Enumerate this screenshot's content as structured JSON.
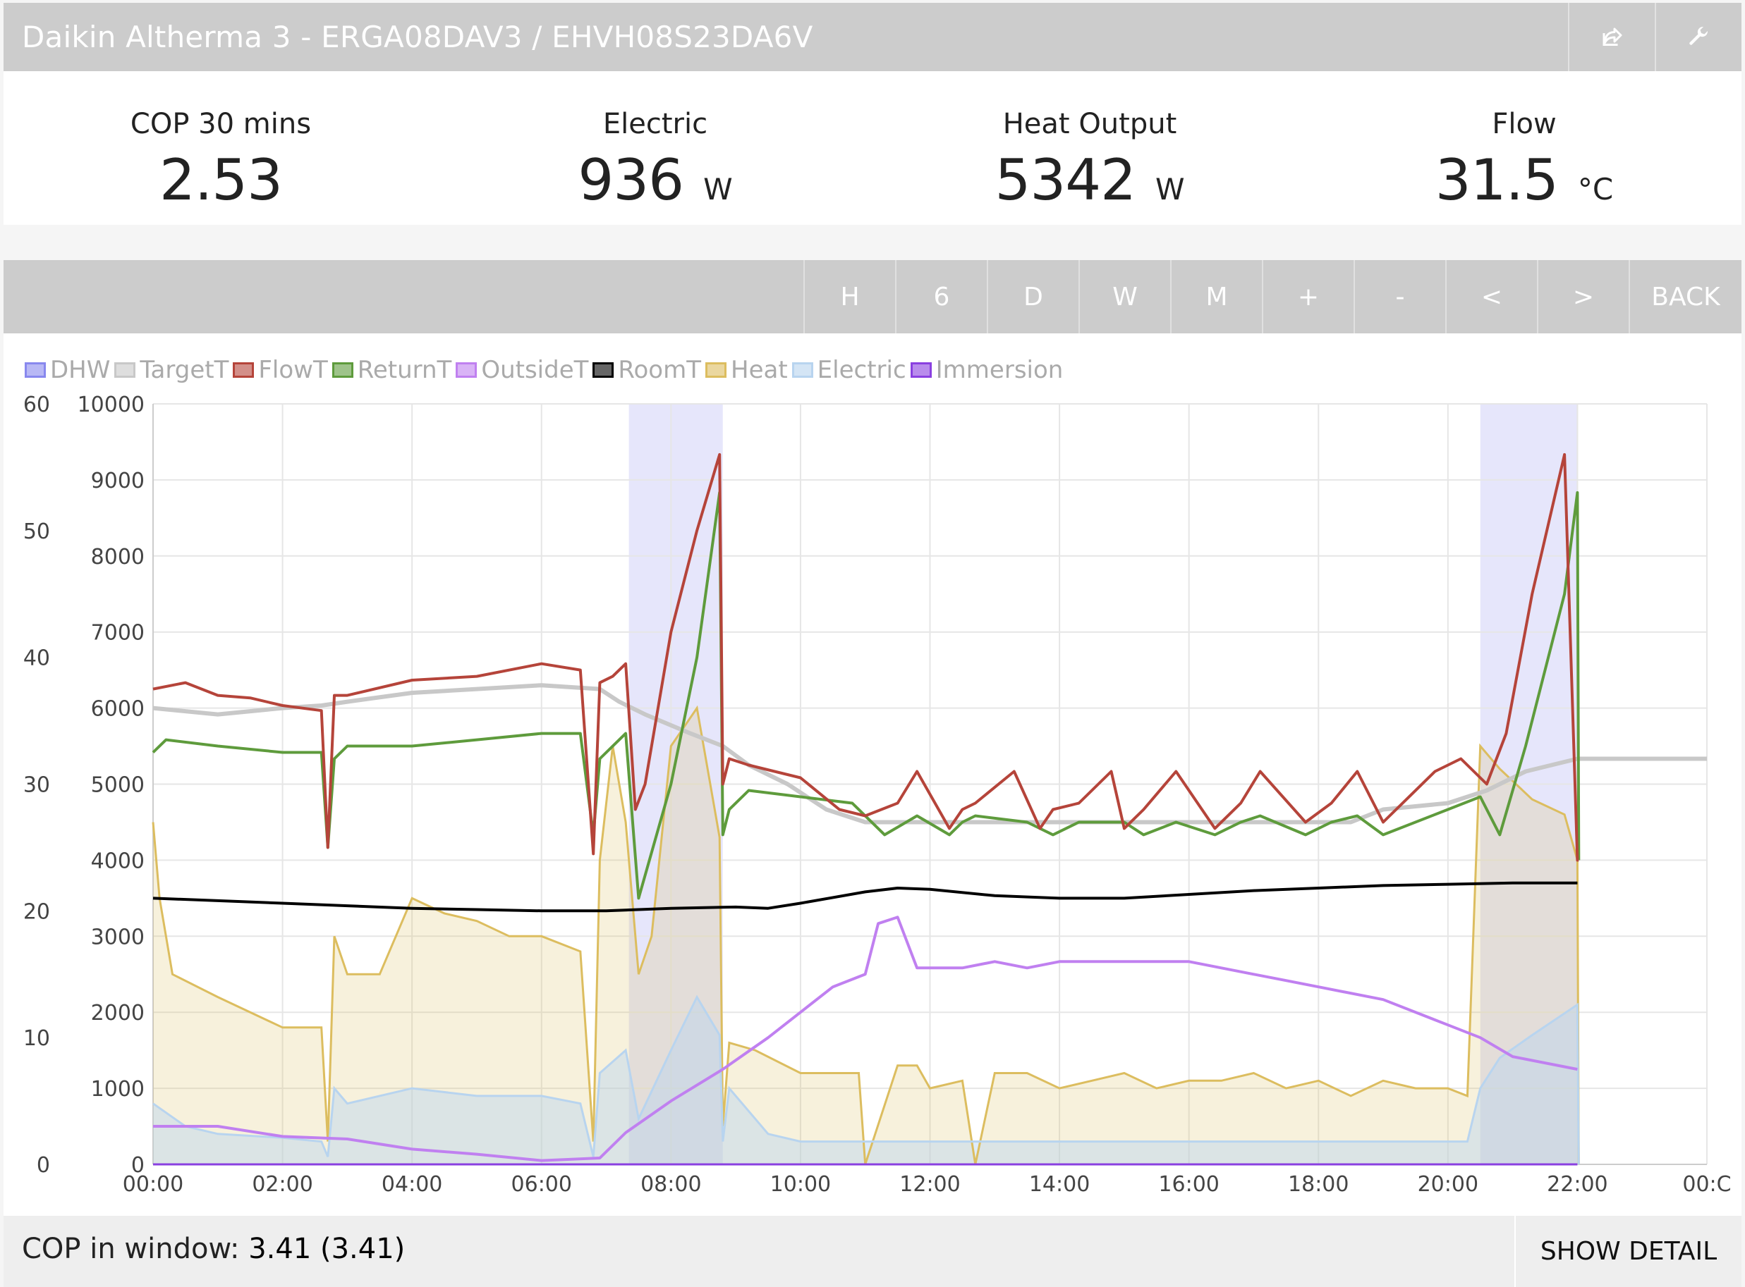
{
  "header": {
    "title": "Daikin Altherma 3 - ERGA08DAV3 / EHVH08S23DA6V",
    "share_icon": "share-icon",
    "settings_icon": "wrench-icon"
  },
  "stats": [
    {
      "label": "COP 30 mins",
      "value": "2.53",
      "unit": ""
    },
    {
      "label": "Electric",
      "value": "936",
      "unit": "W"
    },
    {
      "label": "Heat Output",
      "value": "5342",
      "unit": "W"
    },
    {
      "label": "Flow",
      "value": "31.5",
      "unit": "°C"
    }
  ],
  "toolbar": {
    "buttons": [
      "H",
      "6",
      "D",
      "W",
      "M",
      "+",
      "-",
      "<",
      ">",
      "BACK"
    ]
  },
  "footer": {
    "cop_label": "COP in window:",
    "cop_value": "3.41 (3.41)",
    "show_detail": "SHOW DETAIL"
  },
  "chart_data": {
    "type": "line",
    "legend": [
      {
        "name": "DHW",
        "color": "#8888ee"
      },
      {
        "name": "TargetT",
        "color": "#c8c8c8"
      },
      {
        "name": "FlowT",
        "color": "#b5443a"
      },
      {
        "name": "ReturnT",
        "color": "#5e9b3c"
      },
      {
        "name": "OutsideT",
        "color": "#c080f0"
      },
      {
        "name": "RoomT",
        "color": "#000000"
      },
      {
        "name": "Heat",
        "color": "#dcbd5f"
      },
      {
        "name": "Electric",
        "color": "#b8d4ef"
      },
      {
        "name": "Immersion",
        "color": "#8a40e0"
      }
    ],
    "x_ticks": [
      "00:00",
      "02:00",
      "04:00",
      "06:00",
      "08:00",
      "10:00",
      "12:00",
      "14:00",
      "16:00",
      "18:00",
      "20:00",
      "22:00",
      "00:C"
    ],
    "xlim_hours": [
      0,
      24
    ],
    "y_left_ticks": [
      0,
      10,
      20,
      30,
      40,
      50,
      60
    ],
    "y_left_range": [
      0,
      60
    ],
    "y_right_ticks": [
      0,
      1000,
      2000,
      3000,
      4000,
      5000,
      6000,
      7000,
      8000,
      9000,
      10000
    ],
    "y_right_range": [
      0,
      10000
    ],
    "dhw_periods_hours": [
      [
        7.35,
        8.8
      ],
      [
        20.5,
        22.0
      ]
    ],
    "series": [
      {
        "name": "TargetT",
        "x": [
          0,
          1,
          2,
          2.6,
          3,
          4,
          5,
          6,
          6.9,
          7.2,
          7.6,
          8.3,
          8.8,
          9.2,
          9.8,
          10.4,
          11,
          12,
          13,
          14,
          15,
          16,
          17,
          18,
          18.5,
          19,
          20,
          20.6,
          21.2,
          22,
          24
        ],
        "y": [
          36,
          35.5,
          36,
          36.2,
          36.5,
          37.2,
          37.5,
          37.8,
          37.5,
          36.5,
          35.5,
          34,
          33,
          31.5,
          30,
          28,
          27,
          27,
          27,
          27,
          27,
          27,
          27,
          27,
          27,
          28,
          28.5,
          29.5,
          31,
          32,
          32
        ]
      },
      {
        "name": "FlowT",
        "x": [
          0,
          0.5,
          1,
          1.5,
          2,
          2.6,
          2.7,
          2.8,
          3,
          4,
          5,
          6,
          6.6,
          6.8,
          6.9,
          7.1,
          7.3,
          7.45,
          7.6,
          8,
          8.4,
          8.75,
          8.8,
          8.9,
          9.2,
          10,
          10.6,
          11,
          11.5,
          11.8,
          12.3,
          12.5,
          12.7,
          13.3,
          13.7,
          13.9,
          14.3,
          14.8,
          15,
          15.3,
          15.8,
          16.4,
          16.8,
          17.1,
          17.8,
          18.2,
          18.6,
          19,
          19.8,
          20.2,
          20.6,
          20.9,
          21.3,
          21.8,
          22.0,
          22.02
        ],
        "y": [
          37.5,
          38,
          37,
          36.8,
          36.2,
          35.8,
          25,
          37,
          37,
          38.2,
          38.5,
          39.5,
          39,
          24.5,
          38,
          38.5,
          39.5,
          28,
          30,
          42,
          50,
          56,
          30,
          32,
          31.5,
          30.5,
          28,
          27.5,
          28.5,
          31,
          26.5,
          28,
          28.5,
          31,
          26.5,
          28,
          28.5,
          31,
          26.5,
          28,
          31,
          26.5,
          28.5,
          31,
          27,
          28.5,
          31,
          27,
          31,
          32,
          30,
          34,
          45,
          56,
          24,
          24
        ]
      },
      {
        "name": "ReturnT",
        "x": [
          0,
          0.2,
          1,
          2,
          2.6,
          2.7,
          2.8,
          3,
          4,
          5,
          6,
          6.6,
          6.8,
          6.9,
          7.3,
          7.5,
          8,
          8.4,
          8.75,
          8.8,
          8.9,
          9.2,
          10,
          10.8,
          11.3,
          11.8,
          12.3,
          12.5,
          12.7,
          13.5,
          13.9,
          14.3,
          15,
          15.3,
          15.8,
          16.4,
          16.8,
          17.1,
          17.8,
          18.2,
          18.6,
          19,
          20,
          20.5,
          20.8,
          21.2,
          21.8,
          22.0,
          22.02
        ],
        "y": [
          32.5,
          33.5,
          33,
          32.5,
          32.5,
          25,
          32,
          33,
          33,
          33.5,
          34,
          34,
          26,
          32,
          34,
          21,
          30,
          40,
          53,
          26,
          28,
          29.5,
          29,
          28.5,
          26,
          27.5,
          26,
          27,
          27.5,
          27,
          26,
          27,
          27,
          26,
          27,
          26,
          27,
          27.5,
          26,
          27,
          27.5,
          26,
          28,
          29,
          26,
          33,
          45,
          53,
          24
        ]
      },
      {
        "name": "RoomT",
        "x": [
          0,
          1,
          2,
          3,
          4,
          5,
          6,
          7,
          8,
          9,
          9.5,
          10,
          11,
          11.5,
          12,
          13,
          14,
          15,
          16,
          17,
          18,
          19,
          20,
          21,
          22
        ],
        "y": [
          21,
          20.8,
          20.6,
          20.4,
          20.2,
          20.1,
          20,
          20,
          20.2,
          20.3,
          20.2,
          20.6,
          21.5,
          21.8,
          21.7,
          21.2,
          21,
          21,
          21.3,
          21.6,
          21.8,
          22,
          22.1,
          22.2,
          22.2
        ]
      },
      {
        "name": "OutsideT",
        "x": [
          0,
          1,
          2,
          3,
          4,
          5,
          6,
          6.9,
          7.3,
          8,
          8.8,
          9.5,
          10,
          10.5,
          11,
          11.2,
          11.5,
          11.8,
          12,
          12.5,
          13,
          13.5,
          14,
          15,
          16,
          17,
          17.5,
          18,
          19,
          20,
          20.5,
          21,
          22
        ],
        "y": [
          3,
          3,
          2.2,
          2,
          1.2,
          0.8,
          0.3,
          0.5,
          2.5,
          5,
          7.5,
          10,
          12,
          14,
          15,
          19,
          19.5,
          15.5,
          15.5,
          15.5,
          16,
          15.5,
          16,
          16,
          16,
          15,
          14.5,
          14,
          13,
          11,
          10,
          8.5,
          7.5
        ]
      },
      {
        "name": "Immersion",
        "x": [
          0,
          22
        ],
        "y": [
          0,
          0
        ]
      },
      {
        "name": "Heat",
        "x": [
          0,
          0.1,
          0.3,
          1,
          2,
          2.6,
          2.7,
          2.8,
          3,
          3.5,
          4,
          4.5,
          5,
          5.5,
          6,
          6.6,
          6.8,
          6.9,
          7.1,
          7.3,
          7.5,
          7.7,
          8,
          8.4,
          8.75,
          8.8,
          8.9,
          9.3,
          10,
          10.9,
          11,
          11.5,
          11.8,
          12,
          12.5,
          12.7,
          13,
          13.5,
          14,
          14.5,
          15,
          15.5,
          16,
          16.5,
          17,
          17.5,
          18,
          18.5,
          19,
          19.5,
          20,
          20.3,
          20.5,
          20.8,
          21.3,
          21.8,
          22.0,
          22.02
        ],
        "y": [
          4500,
          3500,
          2500,
          2200,
          1800,
          1800,
          300,
          3000,
          2500,
          2500,
          3500,
          3300,
          3200,
          3000,
          3000,
          2800,
          300,
          4000,
          5500,
          4500,
          2500,
          3000,
          5500,
          6000,
          4300,
          500,
          1600,
          1500,
          1200,
          1200,
          0,
          1300,
          1300,
          1000,
          1100,
          0,
          1200,
          1200,
          1000,
          1100,
          1200,
          1000,
          1100,
          1100,
          1200,
          1000,
          1100,
          900,
          1100,
          1000,
          1000,
          900,
          5500,
          5200,
          4800,
          4600,
          4000,
          0
        ]
      },
      {
        "name": "Electric",
        "x": [
          0,
          0.5,
          1,
          2,
          2.6,
          2.7,
          2.8,
          3,
          4,
          5,
          6,
          6.6,
          6.8,
          6.9,
          7.3,
          7.5,
          8,
          8.4,
          8.75,
          8.8,
          8.9,
          9.5,
          10,
          11,
          11.5,
          12,
          13,
          14,
          15,
          16,
          17,
          18,
          19,
          20,
          20.3,
          20.5,
          20.8,
          21.3,
          22.0,
          22.02
        ],
        "y": [
          800,
          500,
          400,
          350,
          300,
          100,
          1000,
          800,
          1000,
          900,
          900,
          800,
          100,
          1200,
          1500,
          600,
          1500,
          2200,
          1700,
          300,
          1000,
          400,
          300,
          300,
          300,
          300,
          300,
          300,
          300,
          300,
          300,
          300,
          300,
          300,
          300,
          1000,
          1400,
          1700,
          2100,
          0
        ]
      }
    ]
  }
}
